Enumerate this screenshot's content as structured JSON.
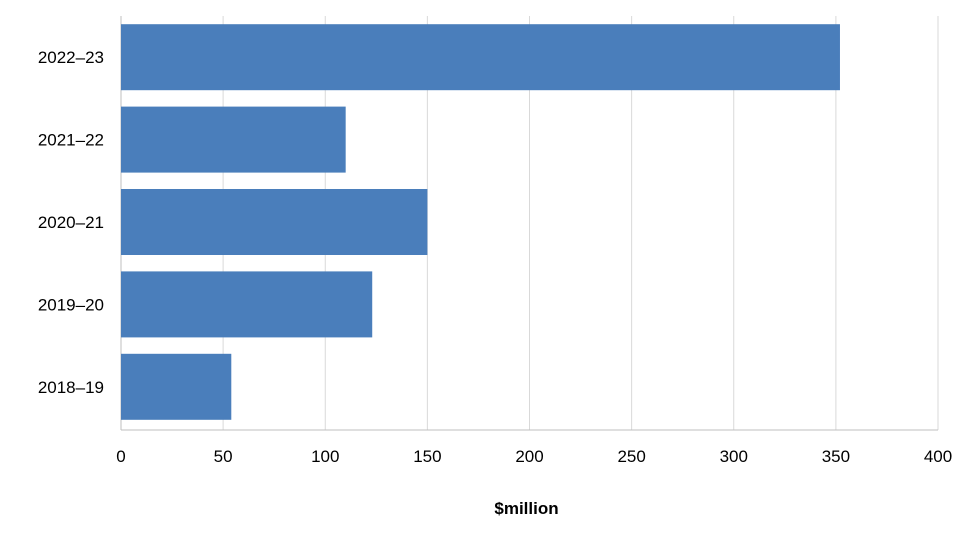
{
  "chart_data": {
    "type": "bar",
    "orientation": "horizontal",
    "categories": [
      "2022–23",
      "2021–22",
      "2020–21",
      "2019–20",
      "2018–19"
    ],
    "values": [
      352,
      110,
      150,
      123,
      54
    ],
    "xlabel": "$million",
    "ylabel": "",
    "xlim": [
      0,
      400
    ],
    "x_ticks": [
      0,
      50,
      100,
      150,
      200,
      250,
      300,
      350,
      400
    ],
    "x_tick_labels": [
      "0",
      "50",
      "100",
      "150",
      "200",
      "250",
      "300",
      "350",
      "400"
    ],
    "grid": "vertical",
    "legend": "none",
    "bar_color": "#4a7ebb",
    "grid_color": "#d9d9d9"
  }
}
